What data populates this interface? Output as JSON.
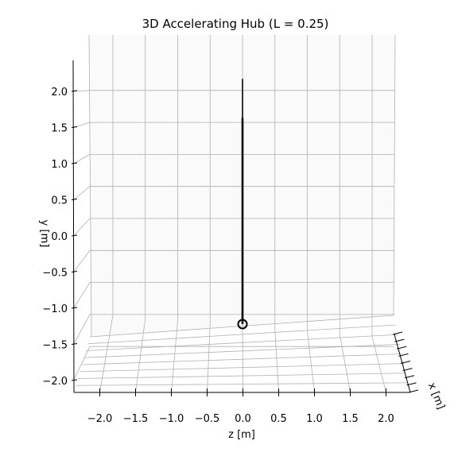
{
  "chart_data": {
    "type": "line",
    "projection": "3d",
    "title": "3D Accelerating Hub (L = 0.25)",
    "xlabel": "z [m]",
    "ylabel": "y [m]",
    "zlabel": "x [m]",
    "x_ticks": [
      "−2.0",
      "−1.5",
      "−1.0",
      "−0.5",
      "0.0",
      "0.5",
      "1.0",
      "1.5",
      "2.0"
    ],
    "y_ticks": [
      "−2.0",
      "−1.5",
      "−1.0",
      "−0.5",
      "0.0",
      "0.5",
      "1.0",
      "1.5",
      "2.0"
    ],
    "xlim": [
      -2.3,
      2.3
    ],
    "ylim": [
      -2.3,
      2.3
    ],
    "grid": true,
    "series": [
      {
        "role": "rod",
        "z": [
          0.0,
          0.0
        ],
        "y": [
          -1.25,
          2.2
        ],
        "color": "#000000"
      },
      {
        "role": "hub",
        "z": [
          0.0
        ],
        "y": [
          -1.25
        ],
        "marker": "open-circle",
        "color": "#000000"
      }
    ],
    "rod_highlight": {
      "z": [
        0.0,
        0.0
      ],
      "y": [
        -1.25,
        1.65
      ],
      "color": "#000000"
    }
  }
}
